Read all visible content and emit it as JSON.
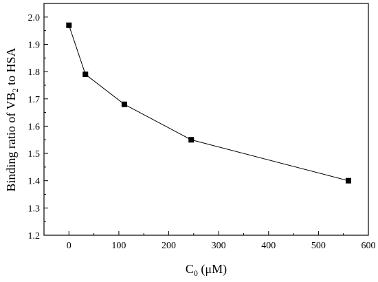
{
  "chart_data": {
    "type": "line",
    "xlabel": {
      "main": "C",
      "sub": "0",
      "rest": " (μM)"
    },
    "ylabel": {
      "pre": "Binding ratio of VB",
      "sub": "2",
      "post": " to HSA"
    },
    "xlim": [
      -50,
      600
    ],
    "ylim": [
      1.2,
      2.05
    ],
    "xticks": [
      0,
      100,
      200,
      300,
      400,
      500,
      600
    ],
    "yticks": [
      1.2,
      1.3,
      1.4,
      1.5,
      1.6,
      1.7,
      1.8,
      1.9,
      2.0
    ],
    "xtick_labels": [
      "0",
      "100",
      "200",
      "300",
      "400",
      "500",
      "600"
    ],
    "ytick_labels": [
      "1.2",
      "1.3",
      "1.4",
      "1.5",
      "1.6",
      "1.7",
      "1.8",
      "1.9",
      "2.0"
    ],
    "grid": false,
    "marker": "square",
    "color": "#000000",
    "series": [
      {
        "x": [
          0,
          33,
          111,
          245,
          560
        ],
        "y": [
          1.97,
          1.79,
          1.68,
          1.55,
          1.4
        ]
      }
    ]
  }
}
